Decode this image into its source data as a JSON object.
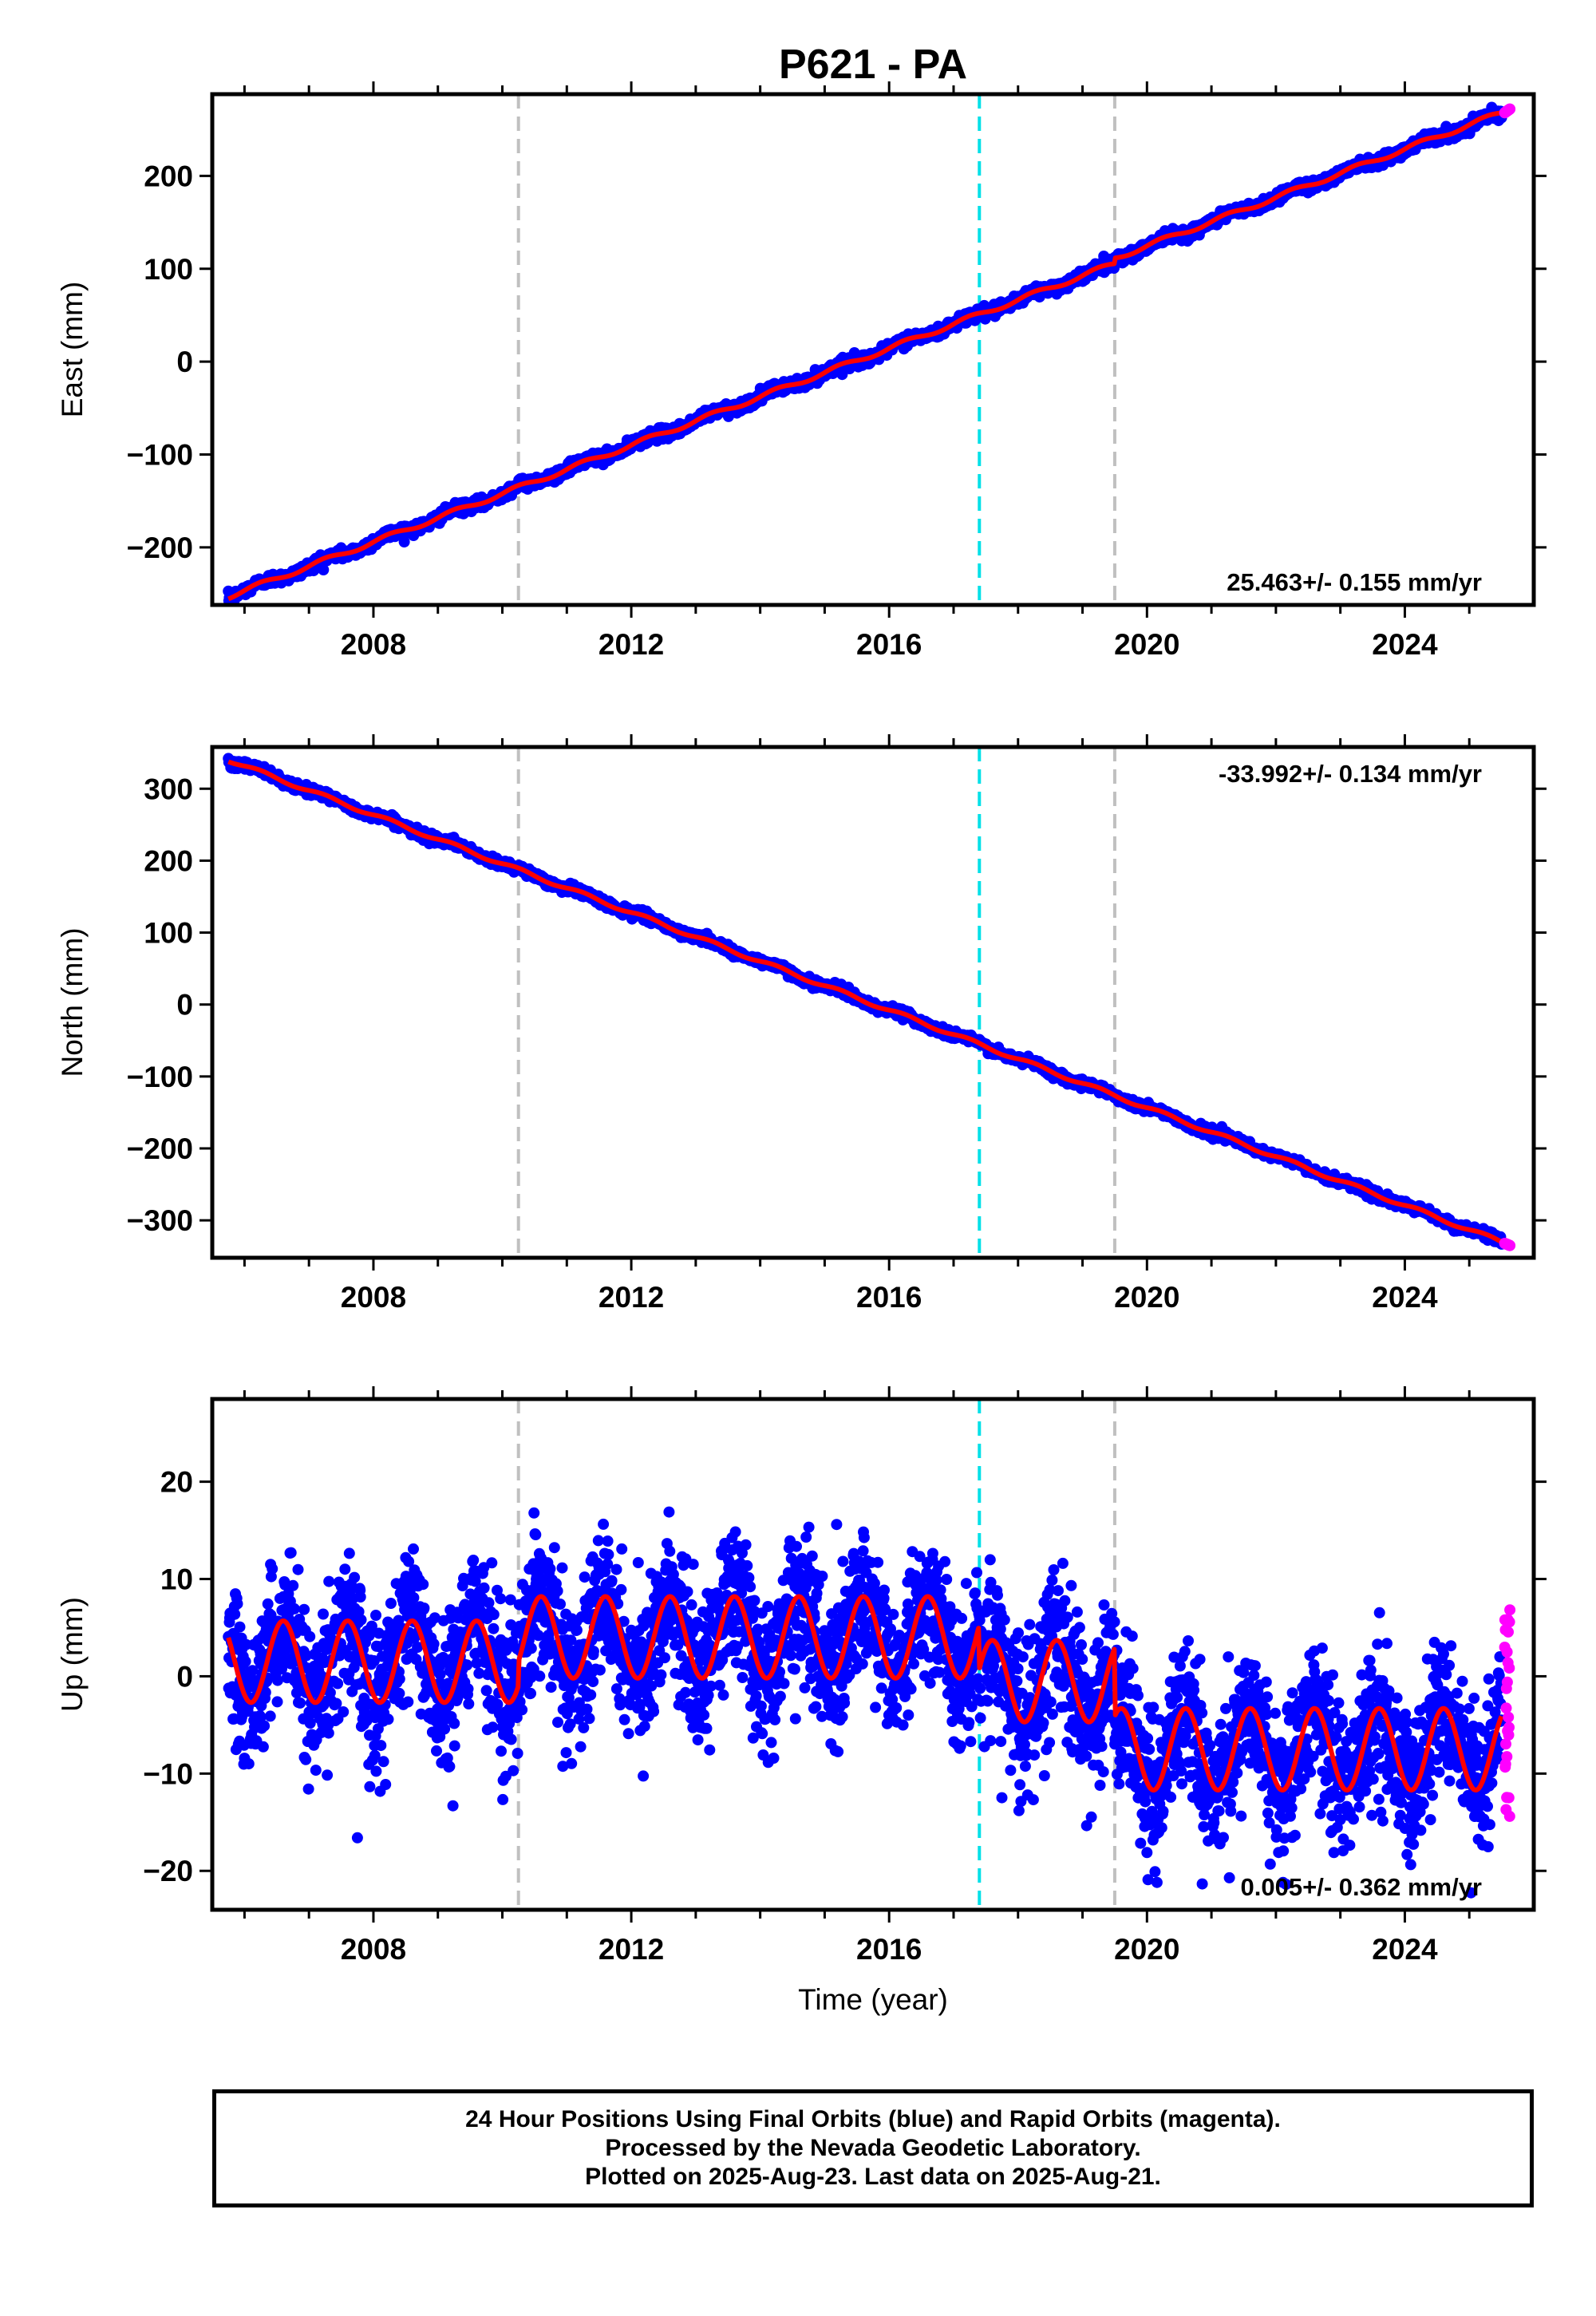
{
  "title": "P621 - PA",
  "footer": {
    "line1": "24 Hour Positions Using Final Orbits (blue) and Rapid Orbits (magenta).",
    "line2": "Processed by the Nevada Geodetic Laboratory.",
    "line3": "Plotted on 2025-Aug-23. Last data on 2025-Aug-21."
  },
  "colors": {
    "final_orbits": "#0000ff",
    "rapid_orbits": "#ff00ff",
    "model_fit": "#ff0000",
    "gray_event_lines": "#c0c0c0",
    "cyan_event_line": "#00e0e8"
  },
  "chart_data": [
    {
      "type": "scatter",
      "panel": "east",
      "ylabel": "East (mm)",
      "xlabel": "",
      "xlim": [
        2005.5,
        2026.0
      ],
      "ylim": [
        -262,
        288
      ],
      "xticks": [
        2008,
        2012,
        2016,
        2020,
        2024
      ],
      "yticks": [
        -200,
        -100,
        0,
        100,
        200
      ],
      "rate_label": "25.463+/- 0.155 mm/yr",
      "rate_position": "bottom-right",
      "grid": false,
      "events": {
        "gray": [
          2010.25,
          2019.5
        ],
        "cyan": [
          2017.4
        ]
      },
      "series": [
        {
          "name": "final",
          "x_start": 2005.75,
          "x_end": 2025.5,
          "y_start": -250,
          "y_end": 265,
          "scatter_mm": 3,
          "trend_type": "linear"
        },
        {
          "name": "rapid",
          "x_start": 2025.55,
          "x_end": 2025.63,
          "y_start": 268,
          "y_end": 272
        }
      ],
      "offsets": [
        {
          "year": 2019.5,
          "mm": 6
        }
      ]
    },
    {
      "type": "scatter",
      "panel": "north",
      "ylabel": "North (mm)",
      "xlabel": "",
      "xlim": [
        2005.5,
        2026.0
      ],
      "ylim": [
        -352,
        358
      ],
      "xticks": [
        2008,
        2012,
        2016,
        2020,
        2024
      ],
      "yticks": [
        -300,
        -200,
        -100,
        0,
        100,
        200,
        300
      ],
      "rate_label": "-33.992+/- 0.134 mm/yr",
      "rate_position": "top-right",
      "grid": false,
      "events": {
        "gray": [
          2010.25,
          2019.5
        ],
        "cyan": [
          2017.4
        ]
      },
      "series": [
        {
          "name": "final",
          "x_start": 2005.75,
          "x_end": 2025.5,
          "y_start": 340,
          "y_end": -330,
          "scatter_mm": 3,
          "trend_type": "linear"
        },
        {
          "name": "rapid",
          "x_start": 2025.55,
          "x_end": 2025.63,
          "y_start": -332,
          "y_end": -335
        }
      ]
    },
    {
      "type": "scatter",
      "panel": "up",
      "ylabel": "Up (mm)",
      "xlabel": "Time (year)",
      "xlim": [
        2005.5,
        2026.0
      ],
      "ylim": [
        -24,
        28.5
      ],
      "xticks": [
        2008,
        2012,
        2016,
        2020,
        2024
      ],
      "yticks": [
        -20,
        -10,
        0,
        10,
        20
      ],
      "rate_label": "0.005+/- 0.362 mm/yr",
      "rate_position": "bottom-right",
      "grid": false,
      "events": {
        "gray": [
          2010.25,
          2019.5
        ],
        "cyan": [
          2017.4
        ]
      },
      "seasonal_model": [
        {
          "from": 2005.75,
          "to": 2010.25,
          "mean": 1.5,
          "amplitude": 4.2
        },
        {
          "from": 2010.25,
          "to": 2017.4,
          "mean": 4.0,
          "amplitude": 4.2
        },
        {
          "from": 2017.4,
          "to": 2019.5,
          "mean": -0.5,
          "amplitude": 4.2
        },
        {
          "from": 2019.5,
          "to": 2025.5,
          "mean": -7.5,
          "amplitude": 4.2
        }
      ],
      "series": [
        {
          "name": "final",
          "x_start": 2005.75,
          "x_end": 2025.5,
          "scatter_mm": 3.5
        },
        {
          "name": "rapid",
          "x_start": 2025.55,
          "x_end": 2025.63,
          "y_range": [
            -15,
            8
          ]
        }
      ]
    }
  ]
}
